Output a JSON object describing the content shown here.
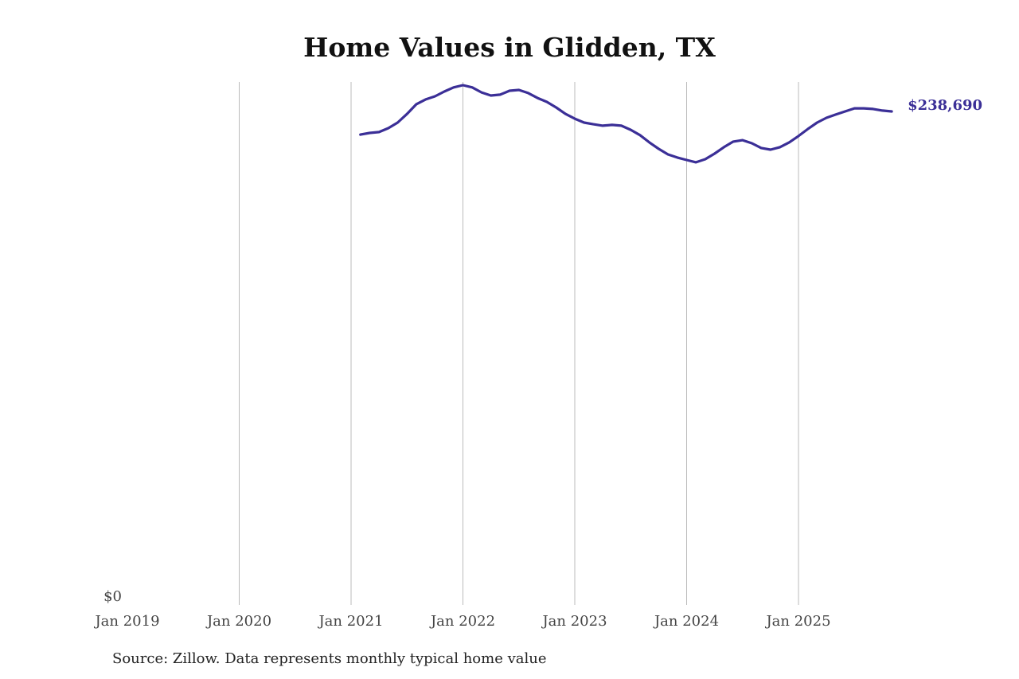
{
  "chart_data": {
    "type": "line",
    "title": "Home Values in Glidden, TX",
    "xlabel": "",
    "ylabel": "",
    "x_ticks": [
      "Jan 2019",
      "Jan 2020",
      "Jan 2021",
      "Jan 2022",
      "Jan 2023",
      "Jan 2024",
      "Jan 2025"
    ],
    "y_ticks": [
      "$0"
    ],
    "ylim": [
      0,
      245000
    ],
    "grid": "vertical",
    "series": [
      {
        "name": "Typical home value",
        "color": "#3b2f97",
        "start": "2021-02",
        "frequency": "monthly",
        "values": [
          227500,
          228300,
          228700,
          230600,
          233300,
          237500,
          242200,
          244500,
          246000,
          248300,
          250300,
          251400,
          250300,
          247900,
          246400,
          246800,
          248700,
          249100,
          247600,
          245200,
          243300,
          240600,
          237500,
          235200,
          233300,
          232500,
          231800,
          232200,
          231800,
          229800,
          227200,
          223700,
          220600,
          217900,
          216400,
          215200,
          214100,
          215600,
          218300,
          221400,
          224100,
          224800,
          223300,
          221000,
          220200,
          221400,
          223700,
          226800,
          230200,
          233300,
          235600,
          237200,
          238700,
          240200,
          240200,
          239900,
          239100,
          238690
        ]
      }
    ],
    "end_label": "$238,690",
    "source": "Source: Zillow. Data represents monthly typical home value"
  }
}
